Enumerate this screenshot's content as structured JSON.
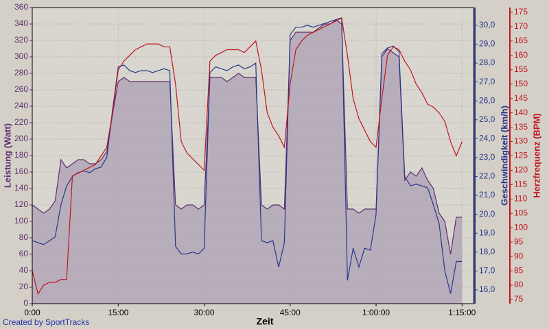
{
  "chart_data": {
    "type": "line",
    "x_label": "Zeit",
    "credit": "Created by SportTracks",
    "grid": true,
    "x": [
      0,
      1,
      2,
      3,
      4,
      5,
      6,
      7,
      8,
      9,
      10,
      11,
      12,
      13,
      14,
      15,
      16,
      17,
      18,
      19,
      20,
      21,
      22,
      23,
      24,
      25,
      26,
      27,
      28,
      29,
      30,
      31,
      32,
      33,
      34,
      35,
      36,
      37,
      38,
      39,
      40,
      41,
      42,
      43,
      44,
      45,
      46,
      47,
      48,
      49,
      50,
      51,
      52,
      53,
      54,
      55,
      56,
      57,
      58,
      59,
      60,
      61,
      62,
      63,
      64,
      65,
      66,
      67,
      68,
      69,
      70,
      71,
      72,
      73,
      74,
      75
    ],
    "xlim": [
      0,
      77
    ],
    "xticks": [
      {
        "value": 0,
        "label": "0:00"
      },
      {
        "value": 15,
        "label": "15:00"
      },
      {
        "value": 30,
        "label": "30:00"
      },
      {
        "value": 45,
        "label": "45:00"
      },
      {
        "value": 60,
        "label": "1:00:00"
      },
      {
        "value": 75,
        "label": "1:15:00"
      }
    ],
    "y_label": "Leistung (Watt)",
    "ylim": [
      0,
      360
    ],
    "yticks": [
      0,
      20,
      40,
      60,
      80,
      100,
      120,
      140,
      160,
      180,
      200,
      220,
      240,
      260,
      280,
      300,
      320,
      340,
      360
    ],
    "y2_label": "Geschwindigkeit (km/h)",
    "y2lim": [
      15.27,
      30.94
    ],
    "y2ticks": [
      {
        "value": 16,
        "label": "16,0"
      },
      {
        "value": 17,
        "label": "17,0"
      },
      {
        "value": 18,
        "label": "18,0"
      },
      {
        "value": 19,
        "label": "19,0"
      },
      {
        "value": 20,
        "label": "20,0"
      },
      {
        "value": 21,
        "label": "21,0"
      },
      {
        "value": 22,
        "label": "22,0"
      },
      {
        "value": 23,
        "label": "23,0"
      },
      {
        "value": 24,
        "label": "24,0"
      },
      {
        "value": 25,
        "label": "25,0"
      },
      {
        "value": 26,
        "label": "26,0"
      },
      {
        "value": 27,
        "label": "27,0"
      },
      {
        "value": 28,
        "label": "28,0"
      },
      {
        "value": 29,
        "label": "29,0"
      },
      {
        "value": 30,
        "label": "30,0"
      }
    ],
    "y3_label": "Herzfrequenz (BPM)",
    "y3lim": [
      73.57,
      176.67
    ],
    "y3ticks": [
      75,
      80,
      85,
      90,
      95,
      100,
      105,
      110,
      115,
      120,
      125,
      130,
      135,
      140,
      145,
      150,
      155,
      160,
      165,
      170,
      175
    ],
    "series": [
      {
        "name": "Leistung",
        "axis": "y",
        "color": "#5e2f6e",
        "fill_color": "#b2a6b6",
        "values": [
          120,
          115,
          110,
          115,
          125,
          175,
          165,
          170,
          175,
          175,
          170,
          170,
          175,
          185,
          230,
          270,
          275,
          270,
          270,
          270,
          270,
          270,
          270,
          270,
          270,
          120,
          115,
          120,
          120,
          115,
          120,
          275,
          275,
          275,
          270,
          275,
          280,
          275,
          275,
          275,
          120,
          115,
          120,
          120,
          115,
          320,
          330,
          330,
          330,
          330,
          335,
          340,
          340,
          345,
          340,
          115,
          115,
          110,
          115,
          115,
          115,
          300,
          310,
          305,
          300,
          150,
          160,
          155,
          165,
          150,
          140,
          110,
          100,
          60,
          105,
          105
        ]
      },
      {
        "name": "Geschwindigkeit",
        "axis": "y2",
        "color": "#27378a",
        "values": [
          18.6,
          18.5,
          18.4,
          18.6,
          18.8,
          20.5,
          21.5,
          22.0,
          22.2,
          22.3,
          22.2,
          22.4,
          22.5,
          23.0,
          25.5,
          27.8,
          27.9,
          27.6,
          27.5,
          27.6,
          27.6,
          27.5,
          27.6,
          27.7,
          27.6,
          18.3,
          17.9,
          17.9,
          18.0,
          17.9,
          18.2,
          27.5,
          27.8,
          27.7,
          27.6,
          27.8,
          27.9,
          27.7,
          27.8,
          28.0,
          18.6,
          18.5,
          18.6,
          17.2,
          18.5,
          29.5,
          29.9,
          29.9,
          30.0,
          29.9,
          30.0,
          30.1,
          30.2,
          30.3,
          30.4,
          16.5,
          18.2,
          17.2,
          18.2,
          18.1,
          20.0,
          28.5,
          28.8,
          28.9,
          28.6,
          22.0,
          21.5,
          21.6,
          21.5,
          21.4,
          20.5,
          19.5,
          17.0,
          15.8,
          17.5,
          17.5
        ]
      },
      {
        "name": "Herzfrequenz",
        "axis": "y3",
        "color": "#c0141c",
        "values": [
          85,
          77,
          80,
          81,
          81,
          82,
          82,
          118,
          119,
          120,
          121,
          122,
          125,
          128,
          140,
          155,
          158,
          160,
          162,
          163,
          164,
          164,
          164,
          163,
          163,
          150,
          130,
          126,
          124,
          122,
          120,
          158,
          160,
          161,
          162,
          162,
          162,
          161,
          163,
          165,
          155,
          140,
          135,
          132,
          128,
          150,
          162,
          165,
          167,
          168,
          169,
          170,
          171,
          172,
          173,
          160,
          145,
          138,
          134,
          130,
          128,
          145,
          160,
          163,
          162,
          158,
          155,
          150,
          147,
          143,
          142,
          140,
          137,
          130,
          125,
          130
        ]
      }
    ]
  }
}
